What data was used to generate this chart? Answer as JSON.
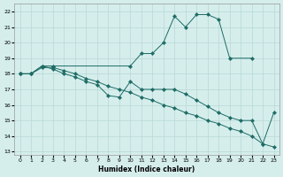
{
  "xlabel": "Humidex (Indice chaleur)",
  "background_color": "#d5eeec",
  "grid_color": "#b8d8d6",
  "line_color": "#1e6b65",
  "xlim": [
    -0.5,
    23.5
  ],
  "ylim": [
    12.8,
    22.5
  ],
  "yticks": [
    13,
    14,
    15,
    16,
    17,
    18,
    19,
    20,
    21,
    22
  ],
  "xticks": [
    0,
    1,
    2,
    3,
    4,
    5,
    6,
    7,
    8,
    9,
    10,
    11,
    12,
    13,
    14,
    15,
    16,
    17,
    18,
    19,
    20,
    21,
    22,
    23
  ],
  "series": [
    {
      "x": [
        0,
        1,
        2,
        3,
        10,
        11,
        12,
        13,
        14,
        15,
        16,
        17,
        18,
        19,
        21
      ],
      "y": [
        18.0,
        18.0,
        18.5,
        18.5,
        18.5,
        19.3,
        19.3,
        20.0,
        21.7,
        21.0,
        21.8,
        21.8,
        21.5,
        19.0,
        19.0
      ]
    },
    {
      "x": [
        0,
        1,
        2,
        3,
        4,
        5,
        6,
        7,
        8,
        9,
        10,
        11,
        12,
        13,
        14,
        15,
        16,
        17,
        18,
        19,
        20,
        21,
        22,
        23
      ],
      "y": [
        18.0,
        18.0,
        18.4,
        18.4,
        18.2,
        18.0,
        17.7,
        17.5,
        17.2,
        17.0,
        16.8,
        16.5,
        16.3,
        16.0,
        15.8,
        15.5,
        15.3,
        15.0,
        14.8,
        14.5,
        14.3,
        14.0,
        13.5,
        13.3
      ]
    },
    {
      "x": [
        0,
        1,
        2,
        3,
        4,
        5,
        6,
        7,
        8,
        9,
        10,
        11,
        12,
        13,
        14,
        15,
        16,
        17,
        18,
        19,
        20,
        21,
        22,
        23
      ],
      "y": [
        18.0,
        18.0,
        18.5,
        18.3,
        18.0,
        17.8,
        17.5,
        17.3,
        16.6,
        16.5,
        17.5,
        17.0,
        17.0,
        17.0,
        17.0,
        16.7,
        16.3,
        15.9,
        15.5,
        15.2,
        15.0,
        15.0,
        13.5,
        15.5
      ]
    }
  ]
}
